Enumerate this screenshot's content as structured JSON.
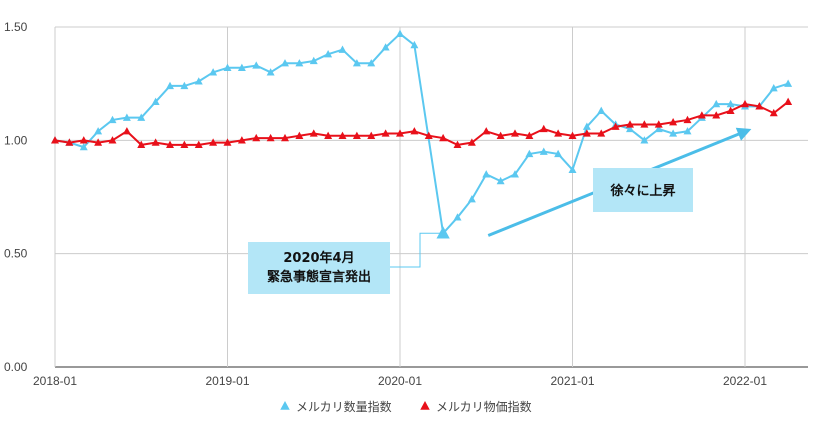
{
  "chart_data": {
    "type": "line",
    "title": "",
    "xlabel": "",
    "ylabel": "",
    "ylim": [
      0,
      1.5
    ],
    "y_ticks": [
      "0.00",
      "0.50",
      "1.00",
      "1.50"
    ],
    "x_ticks": [
      "2018-01",
      "2019-01",
      "2020-01",
      "2021-01",
      "2022-01"
    ],
    "grid": "vertical at year ticks, horizontal at y ticks",
    "legend_position": "bottom-center",
    "x": [
      "2018-01",
      "2018-02",
      "2018-03",
      "2018-04",
      "2018-05",
      "2018-06",
      "2018-07",
      "2018-08",
      "2018-09",
      "2018-10",
      "2018-11",
      "2018-12",
      "2019-01",
      "2019-02",
      "2019-03",
      "2019-04",
      "2019-05",
      "2019-06",
      "2019-07",
      "2019-08",
      "2019-09",
      "2019-10",
      "2019-11",
      "2019-12",
      "2020-01",
      "2020-02",
      "2020-03",
      "2020-04",
      "2020-05",
      "2020-06",
      "2020-07",
      "2020-08",
      "2020-09",
      "2020-10",
      "2020-11",
      "2020-12",
      "2021-01",
      "2021-02",
      "2021-03",
      "2021-04",
      "2021-05",
      "2021-06",
      "2021-07",
      "2021-08",
      "2021-09",
      "2021-10",
      "2021-11",
      "2021-12",
      "2022-01",
      "2022-02",
      "2022-03",
      "2022-04"
    ],
    "series": [
      {
        "name": "メルカリ数量指数",
        "color": "#5bc8f0",
        "marker": "triangle",
        "values": [
          1.0,
          0.99,
          0.97,
          1.04,
          1.09,
          1.1,
          1.1,
          1.17,
          1.24,
          1.24,
          1.26,
          1.3,
          1.32,
          1.32,
          1.33,
          1.3,
          1.34,
          1.34,
          1.35,
          1.38,
          1.4,
          1.34,
          1.34,
          1.41,
          1.47,
          1.42,
          null,
          0.59,
          0.66,
          0.74,
          0.85,
          0.82,
          0.85,
          0.94,
          0.95,
          0.94,
          0.87,
          1.06,
          1.13,
          1.07,
          1.05,
          1.0,
          1.05,
          1.03,
          1.04,
          1.1,
          1.16,
          1.16,
          1.15,
          1.15,
          1.23,
          1.25
        ]
      },
      {
        "name": "メルカリ物価指数",
        "color": "#e8101a",
        "marker": "triangle",
        "values": [
          1.0,
          0.99,
          1.0,
          0.99,
          1.0,
          1.04,
          0.98,
          0.99,
          0.98,
          0.98,
          0.98,
          0.99,
          0.99,
          1.0,
          1.01,
          1.01,
          1.01,
          1.02,
          1.03,
          1.02,
          1.02,
          1.02,
          1.02,
          1.03,
          1.03,
          1.04,
          1.02,
          1.01,
          0.98,
          0.99,
          1.04,
          1.02,
          1.03,
          1.02,
          1.05,
          1.03,
          1.02,
          1.03,
          1.03,
          1.06,
          1.07,
          1.07,
          1.07,
          1.08,
          1.09,
          1.11,
          1.11,
          1.13,
          1.16,
          1.15,
          1.12,
          1.17
        ]
      }
    ],
    "annotations": [
      {
        "lines": [
          "2020年4月",
          "緊急事態宣言発出"
        ],
        "x": "2020-04",
        "y": 0.59
      },
      {
        "lines": [
          "徐々に上昇"
        ],
        "arrow_from": [
          "2020-07",
          0.58
        ],
        "arrow_to": [
          "2022-02",
          1.05
        ]
      }
    ],
    "colors": {
      "callout_fill": "#b3e6f7",
      "arrow": "#4bbde8",
      "grid": "#cccccc"
    }
  }
}
